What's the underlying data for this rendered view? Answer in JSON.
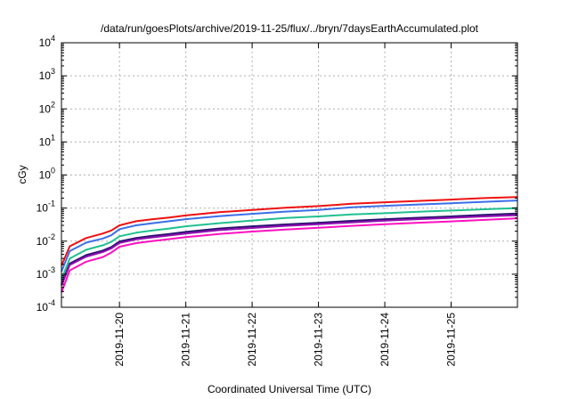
{
  "chart_data": {
    "type": "line",
    "title": "/data/run/goesPlots/archive/2019-11-25/flux/../bryn/7daysEarthAccumulated.plot",
    "xlabel": "Coordinated Universal Time (UTC)",
    "ylabel": "cGy",
    "xlim": [
      "2019-11-19T03:00",
      "2019-11-26T00:00"
    ],
    "ylim": [
      0.0001,
      10000
    ],
    "yscale": "log",
    "grid": true,
    "x_ticks": [
      "2019-11-20",
      "2019-11-21",
      "2019-11-22",
      "2019-11-23",
      "2019-11-24",
      "2019-11-25"
    ],
    "y_ticks": [
      {
        "base": "10",
        "exp": "-4",
        "value": 0.0001
      },
      {
        "base": "10",
        "exp": "-3",
        "value": 0.001
      },
      {
        "base": "10",
        "exp": "-2",
        "value": 0.01
      },
      {
        "base": "10",
        "exp": "-1",
        "value": 0.1
      },
      {
        "base": "10",
        "exp": "0",
        "value": 1
      },
      {
        "base": "10",
        "exp": "1",
        "value": 10
      },
      {
        "base": "10",
        "exp": "2",
        "value": 100
      },
      {
        "base": "10",
        "exp": "3",
        "value": 1000
      },
      {
        "base": "10",
        "exp": "4",
        "value": 10000
      }
    ],
    "x": [
      "2019-11-19T03:00",
      "2019-11-19T06:00",
      "2019-11-19T12:00",
      "2019-11-19T18:00",
      "2019-11-19T21:00",
      "2019-11-20T00:00",
      "2019-11-20T06:00",
      "2019-11-20T12:00",
      "2019-11-20T18:00",
      "2019-11-21T00:00",
      "2019-11-21T12:00",
      "2019-11-22T00:00",
      "2019-11-22T12:00",
      "2019-11-23T00:00",
      "2019-11-23T12:00",
      "2019-11-24T00:00",
      "2019-11-24T12:00",
      "2019-11-25T00:00",
      "2019-11-25T12:00",
      "2019-11-26T00:00"
    ],
    "series": [
      {
        "color": "#ee1111",
        "values": [
          0.0018,
          0.007,
          0.0125,
          0.017,
          0.021,
          0.03,
          0.04,
          0.046,
          0.052,
          0.06,
          0.075,
          0.088,
          0.102,
          0.115,
          0.135,
          0.15,
          0.165,
          0.18,
          0.2,
          0.215
        ]
      },
      {
        "color": "#3b6fe8",
        "values": [
          0.0012,
          0.005,
          0.009,
          0.012,
          0.015,
          0.023,
          0.03,
          0.035,
          0.04,
          0.046,
          0.057,
          0.067,
          0.078,
          0.088,
          0.105,
          0.117,
          0.128,
          0.14,
          0.155,
          0.17
        ]
      },
      {
        "color": "#20c090",
        "values": [
          0.0007,
          0.003,
          0.0055,
          0.0075,
          0.0095,
          0.014,
          0.018,
          0.021,
          0.024,
          0.028,
          0.035,
          0.042,
          0.05,
          0.056,
          0.064,
          0.07,
          0.077,
          0.084,
          0.092,
          0.1
        ]
      },
      {
        "color": "#2a1070",
        "values": [
          0.0005,
          0.0021,
          0.0038,
          0.0052,
          0.0066,
          0.0098,
          0.0125,
          0.0145,
          0.0165,
          0.019,
          0.024,
          0.028,
          0.032,
          0.036,
          0.041,
          0.046,
          0.051,
          0.056,
          0.062,
          0.068
        ]
      },
      {
        "color": "#9010b0",
        "values": [
          0.00045,
          0.0019,
          0.0034,
          0.0047,
          0.006,
          0.0088,
          0.0113,
          0.013,
          0.0148,
          0.017,
          0.0215,
          0.025,
          0.029,
          0.0325,
          0.037,
          0.0415,
          0.046,
          0.0505,
          0.056,
          0.061
        ]
      },
      {
        "color": "#ff10c0",
        "values": [
          0.00028,
          0.0013,
          0.0024,
          0.0033,
          0.0045,
          0.0068,
          0.0087,
          0.0101,
          0.0115,
          0.0133,
          0.0165,
          0.0195,
          0.0225,
          0.0255,
          0.029,
          0.0325,
          0.036,
          0.0395,
          0.044,
          0.049
        ]
      }
    ]
  }
}
